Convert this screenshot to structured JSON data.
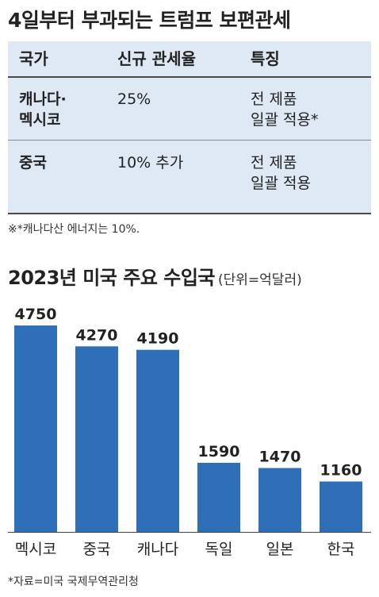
{
  "tariff_title": "4일부터 부과되는 트럼프 보편관세",
  "table": {
    "headers": [
      "국가",
      "신규 관세율",
      "특징"
    ],
    "rows": [
      {
        "country": "캐나다·\n멕시코",
        "rate": "25%",
        "note": "전 제품\n일괄 적용*"
      },
      {
        "country": "중국",
        "rate": "10% 추가",
        "note": "전 제품\n일괄 적용"
      }
    ],
    "footnote": "※*캐나다산 에너지는 10%."
  },
  "chart_data": {
    "type": "bar",
    "title": "2023년 미국 주요 수입국",
    "unit": "(단위=억달러)",
    "categories": [
      "멕시코",
      "중국",
      "캐나다",
      "독일",
      "일본",
      "한국"
    ],
    "values": [
      4750,
      4270,
      4190,
      1590,
      1470,
      1160
    ],
    "ylim": [
      0,
      4750
    ],
    "bar_color": "#2f6fb7",
    "grid": false,
    "source": "*자료=미국 국제무역관리청"
  }
}
